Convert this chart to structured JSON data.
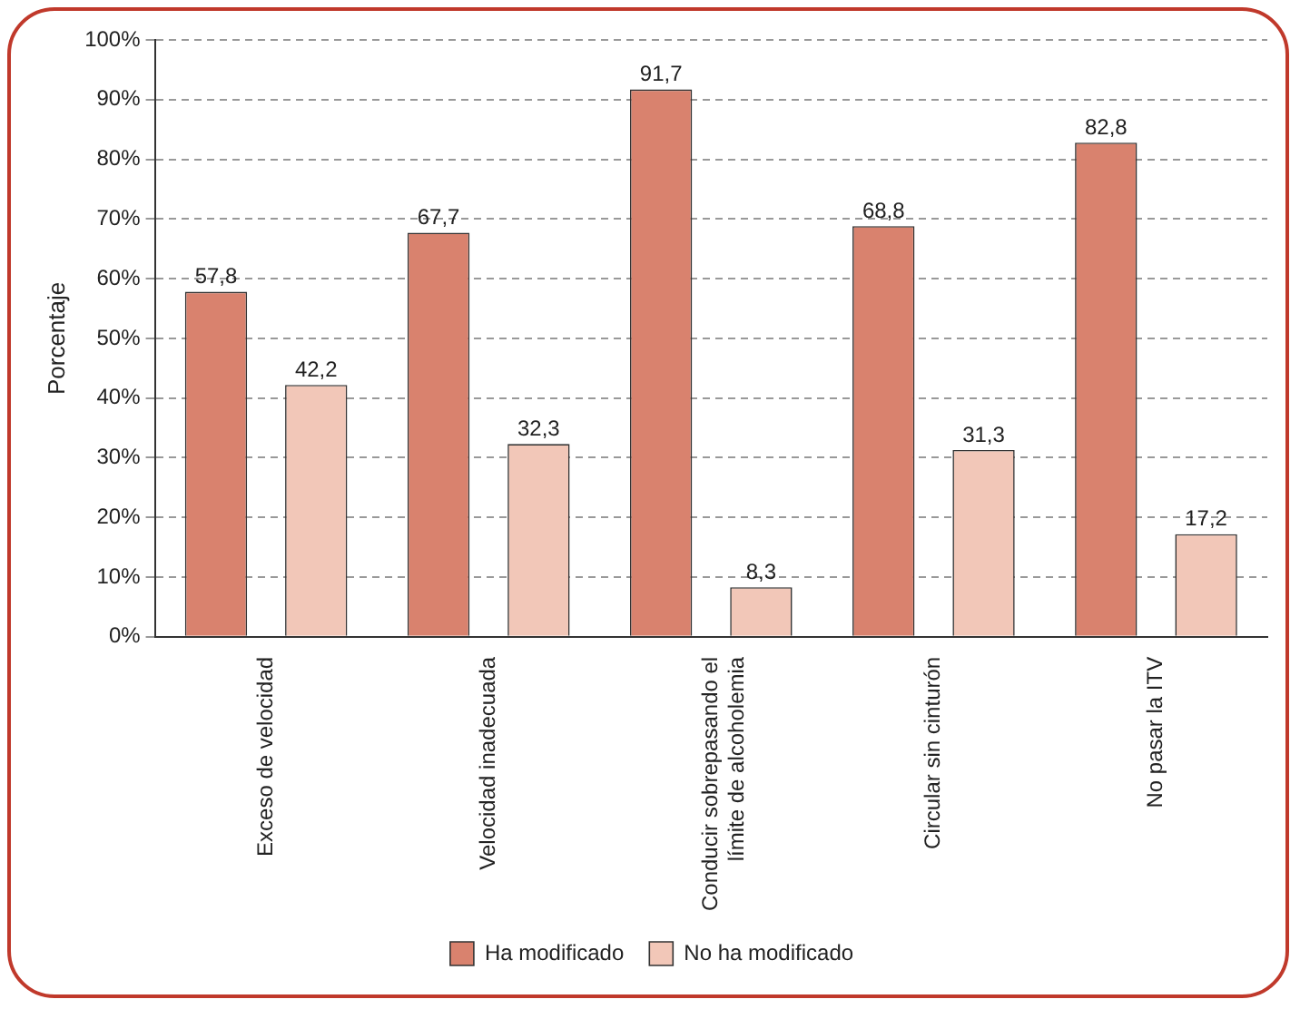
{
  "chart_data": {
    "type": "bar",
    "ylabel": "Porcentaje",
    "categories": [
      "Exceso de velocidad",
      "Velocidad inadecuada",
      "Conducir sobrepasando el límite de alcoholemia",
      "Circular sin cinturón",
      "No pasar la ITV"
    ],
    "series": [
      {
        "name": "Ha modificado",
        "color": "#d9826e",
        "values": [
          57.8,
          67.7,
          91.7,
          68.8,
          82.8
        ]
      },
      {
        "name": "No ha modificado",
        "color": "#f2c7b8",
        "values": [
          42.2,
          32.3,
          8.3,
          31.3,
          17.2
        ]
      }
    ],
    "value_labels": [
      [
        "57,8",
        "67,7",
        "91,7",
        "68,8",
        "82,8"
      ],
      [
        "42,2",
        "32,3",
        "8,3",
        "31,3",
        "17,2"
      ]
    ],
    "ylim": [
      0,
      100
    ],
    "yticks": [
      {
        "value": 0,
        "label": "0%"
      },
      {
        "value": 10,
        "label": "10%"
      },
      {
        "value": 20,
        "label": "20%"
      },
      {
        "value": 30,
        "label": "30%"
      },
      {
        "value": 40,
        "label": "40%"
      },
      {
        "value": 50,
        "label": "50%"
      },
      {
        "value": 60,
        "label": "60%"
      },
      {
        "value": 70,
        "label": "70%"
      },
      {
        "value": 80,
        "label": "80%"
      },
      {
        "value": 90,
        "label": "90%"
      },
      {
        "value": 100,
        "label": "100%"
      }
    ],
    "grid": "y",
    "legend": "bottom"
  }
}
